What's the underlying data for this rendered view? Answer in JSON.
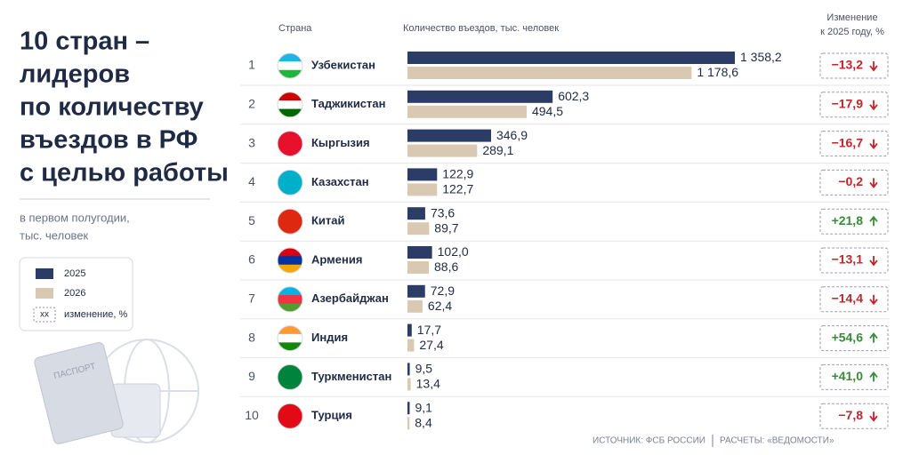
{
  "chart_data": {
    "type": "bar",
    "orientation": "horizontal",
    "title_lines": [
      "10 стран –",
      "лидеров",
      "по количеству",
      "въездов в РФ",
      "с целью работы"
    ],
    "subtitle_lines": [
      "в первом полугодии,",
      "тыс. человек"
    ],
    "column_headers": {
      "country": "Страна",
      "values": "Количество въездов, тыс. человек",
      "change": [
        "Изменение",
        "к 2025 году, %"
      ]
    },
    "ranks": [
      1,
      2,
      3,
      4,
      5,
      6,
      7,
      8,
      9,
      10
    ],
    "categories": [
      "Узбекистан",
      "Таджикистан",
      "Кыргызия",
      "Казахстан",
      "Китай",
      "Армения",
      "Азербайджан",
      "Индия",
      "Туркменистан",
      "Турция"
    ],
    "series": [
      {
        "name": "2025",
        "color": "#2b3d66",
        "values": [
          1358.2,
          602.3,
          346.9,
          122.9,
          73.6,
          102.0,
          72.9,
          17.7,
          9.5,
          9.1
        ],
        "value_labels": [
          "1 358,2",
          "602,3",
          "346,9",
          "122,9",
          "73,6",
          "102,0",
          "72,9",
          "17,7",
          "9,5",
          "9,1"
        ]
      },
      {
        "name": "2026",
        "color": "#d9c9b3",
        "values": [
          1178.6,
          494.5,
          289.1,
          122.7,
          89.7,
          88.6,
          62.4,
          27.4,
          13.4,
          8.4
        ],
        "value_labels": [
          "1 178,6",
          "494,5",
          "289,1",
          "122,7",
          "89,7",
          "88,6",
          "62,4",
          "27,4",
          "13,4",
          "8,4"
        ]
      }
    ],
    "change": {
      "values": [
        -13.2,
        -17.9,
        -16.7,
        -0.2,
        21.8,
        -13.1,
        -14.4,
        54.6,
        41.0,
        -7.8
      ],
      "value_labels": [
        "−13,2",
        "−17,9",
        "−16,7",
        "−0,2",
        "+21,8",
        "−13,1",
        "−14,4",
        "+54,6",
        "+41,0",
        "−7,8"
      ],
      "colors": {
        "negative": "#c0262d",
        "positive": "#3a8a3a"
      }
    },
    "legend_change": {
      "sample": "хх",
      "label": "изменение, %"
    },
    "illustration_label": "ПАСПОРТ",
    "source": [
      "ИСТОЧНИК: ФСБ РОССИИ",
      "РАСЧЕТЫ: «ВЕДОМОСТИ»"
    ]
  }
}
